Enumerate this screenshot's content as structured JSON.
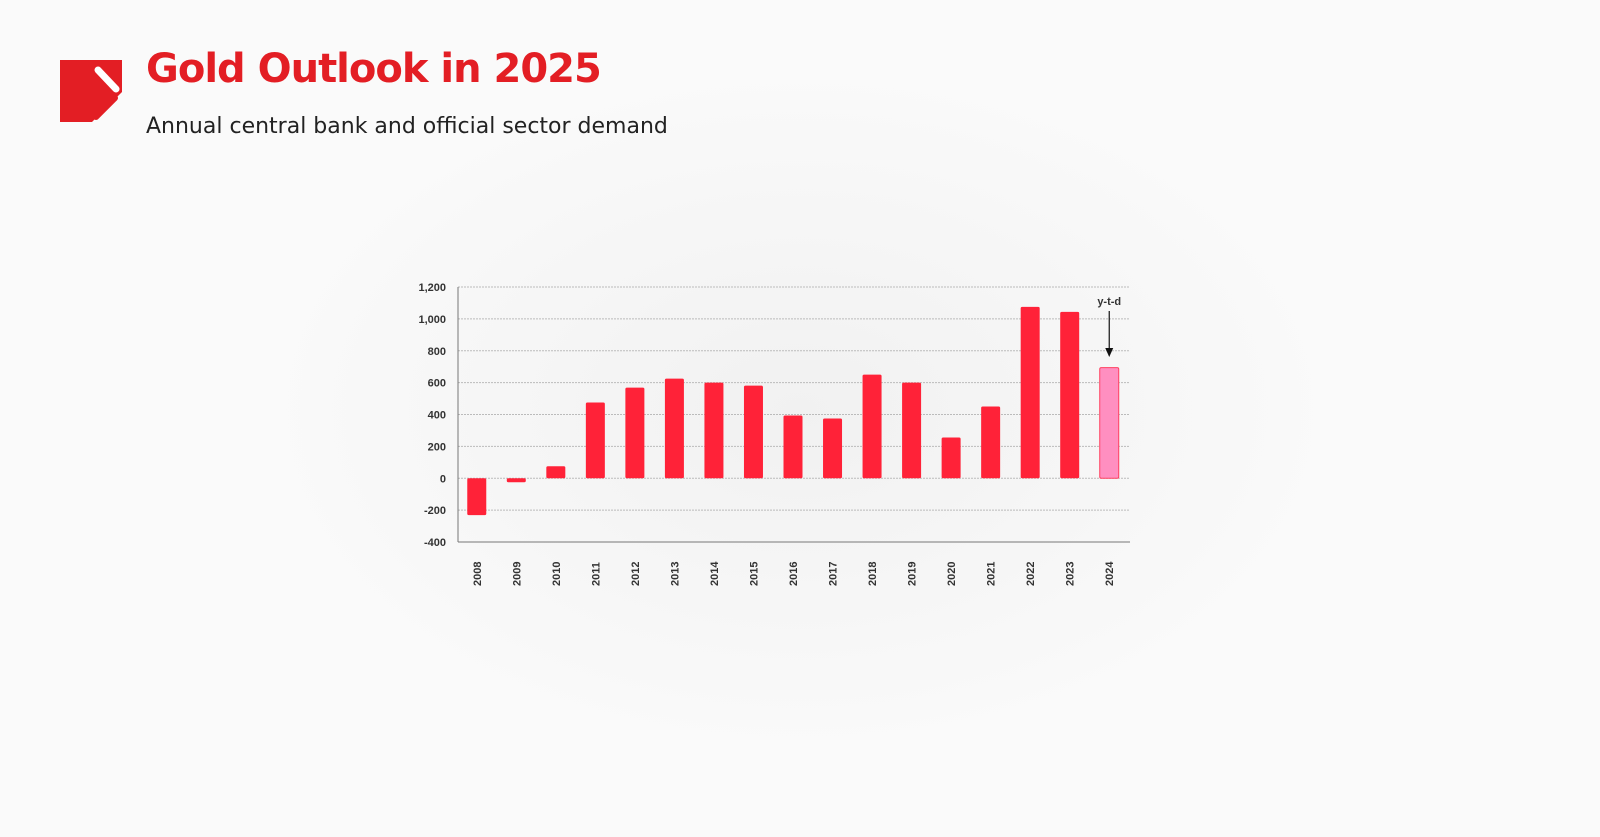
{
  "header": {
    "title": "Gold Outlook in 2025",
    "subtitle": "Annual central bank and official sector demand"
  },
  "colors": {
    "brand": "#e31e24",
    "bar": "#ff2238",
    "bar_ytd": "#ff8fc0"
  },
  "chart_data": {
    "type": "bar",
    "title": "",
    "xlabel": "",
    "ylabel": "",
    "categories": [
      "2008",
      "2009",
      "2010",
      "2011",
      "2012",
      "2013",
      "2014",
      "2015",
      "2016",
      "2017",
      "2018",
      "2019",
      "2020",
      "2021",
      "2022",
      "2023",
      "2024"
    ],
    "values": [
      -231,
      -25,
      75,
      475,
      569,
      625,
      600,
      581,
      394,
      375,
      650,
      600,
      256,
      450,
      1075,
      1044,
      694
    ],
    "ylim": [
      -400,
      1200
    ],
    "yticks": [
      -400,
      -200,
      0,
      200,
      400,
      600,
      800,
      1000,
      1200
    ],
    "ytick_labels": [
      "-400",
      "-200",
      "0",
      "200",
      "400",
      "600",
      "800",
      "1,000",
      "1,200"
    ],
    "grid": true,
    "annotation": {
      "text": "y-t-d",
      "category": "2024"
    }
  }
}
